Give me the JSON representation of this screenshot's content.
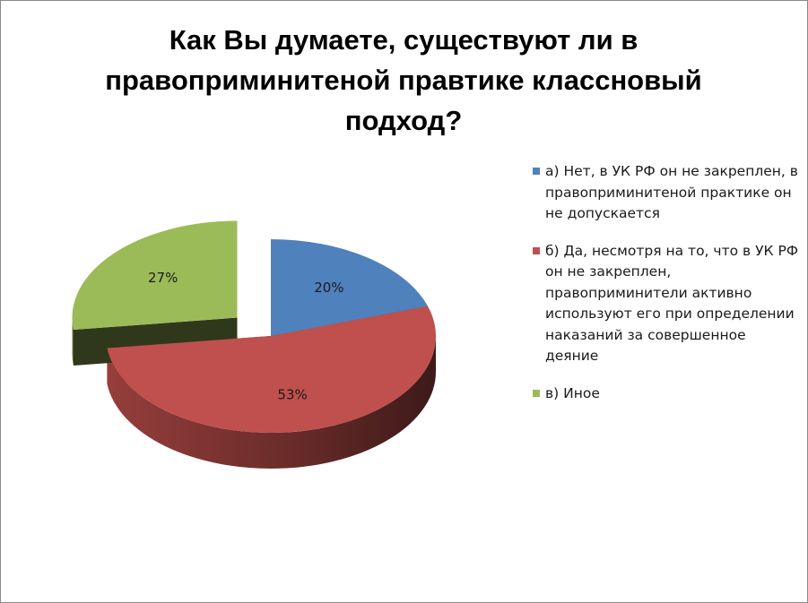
{
  "chart_data": {
    "type": "pie",
    "title": "Как Вы думаете, существуют ли в правоприминитеной правтике классновый подход?",
    "slices": [
      {
        "label": "а) Нет, в УК РФ он не закреплен, в правоприминитеной практике он не допускается",
        "value": 20,
        "value_label": "20%",
        "color": "#4F81BD",
        "exploded": false
      },
      {
        "label": "б) Да, несмотря на то, что в УК РФ он не закреплен, правоприминители активно используют его при определении наказаний за совершенное деяние",
        "value": 53,
        "value_label": "53%",
        "color": "#C0504D",
        "exploded": false
      },
      {
        "label": "в) Иное",
        "value": 27,
        "value_label": "27%",
        "color": "#9BBB59",
        "exploded": true
      }
    ],
    "legend_position": "right",
    "style": "3d-pie"
  }
}
